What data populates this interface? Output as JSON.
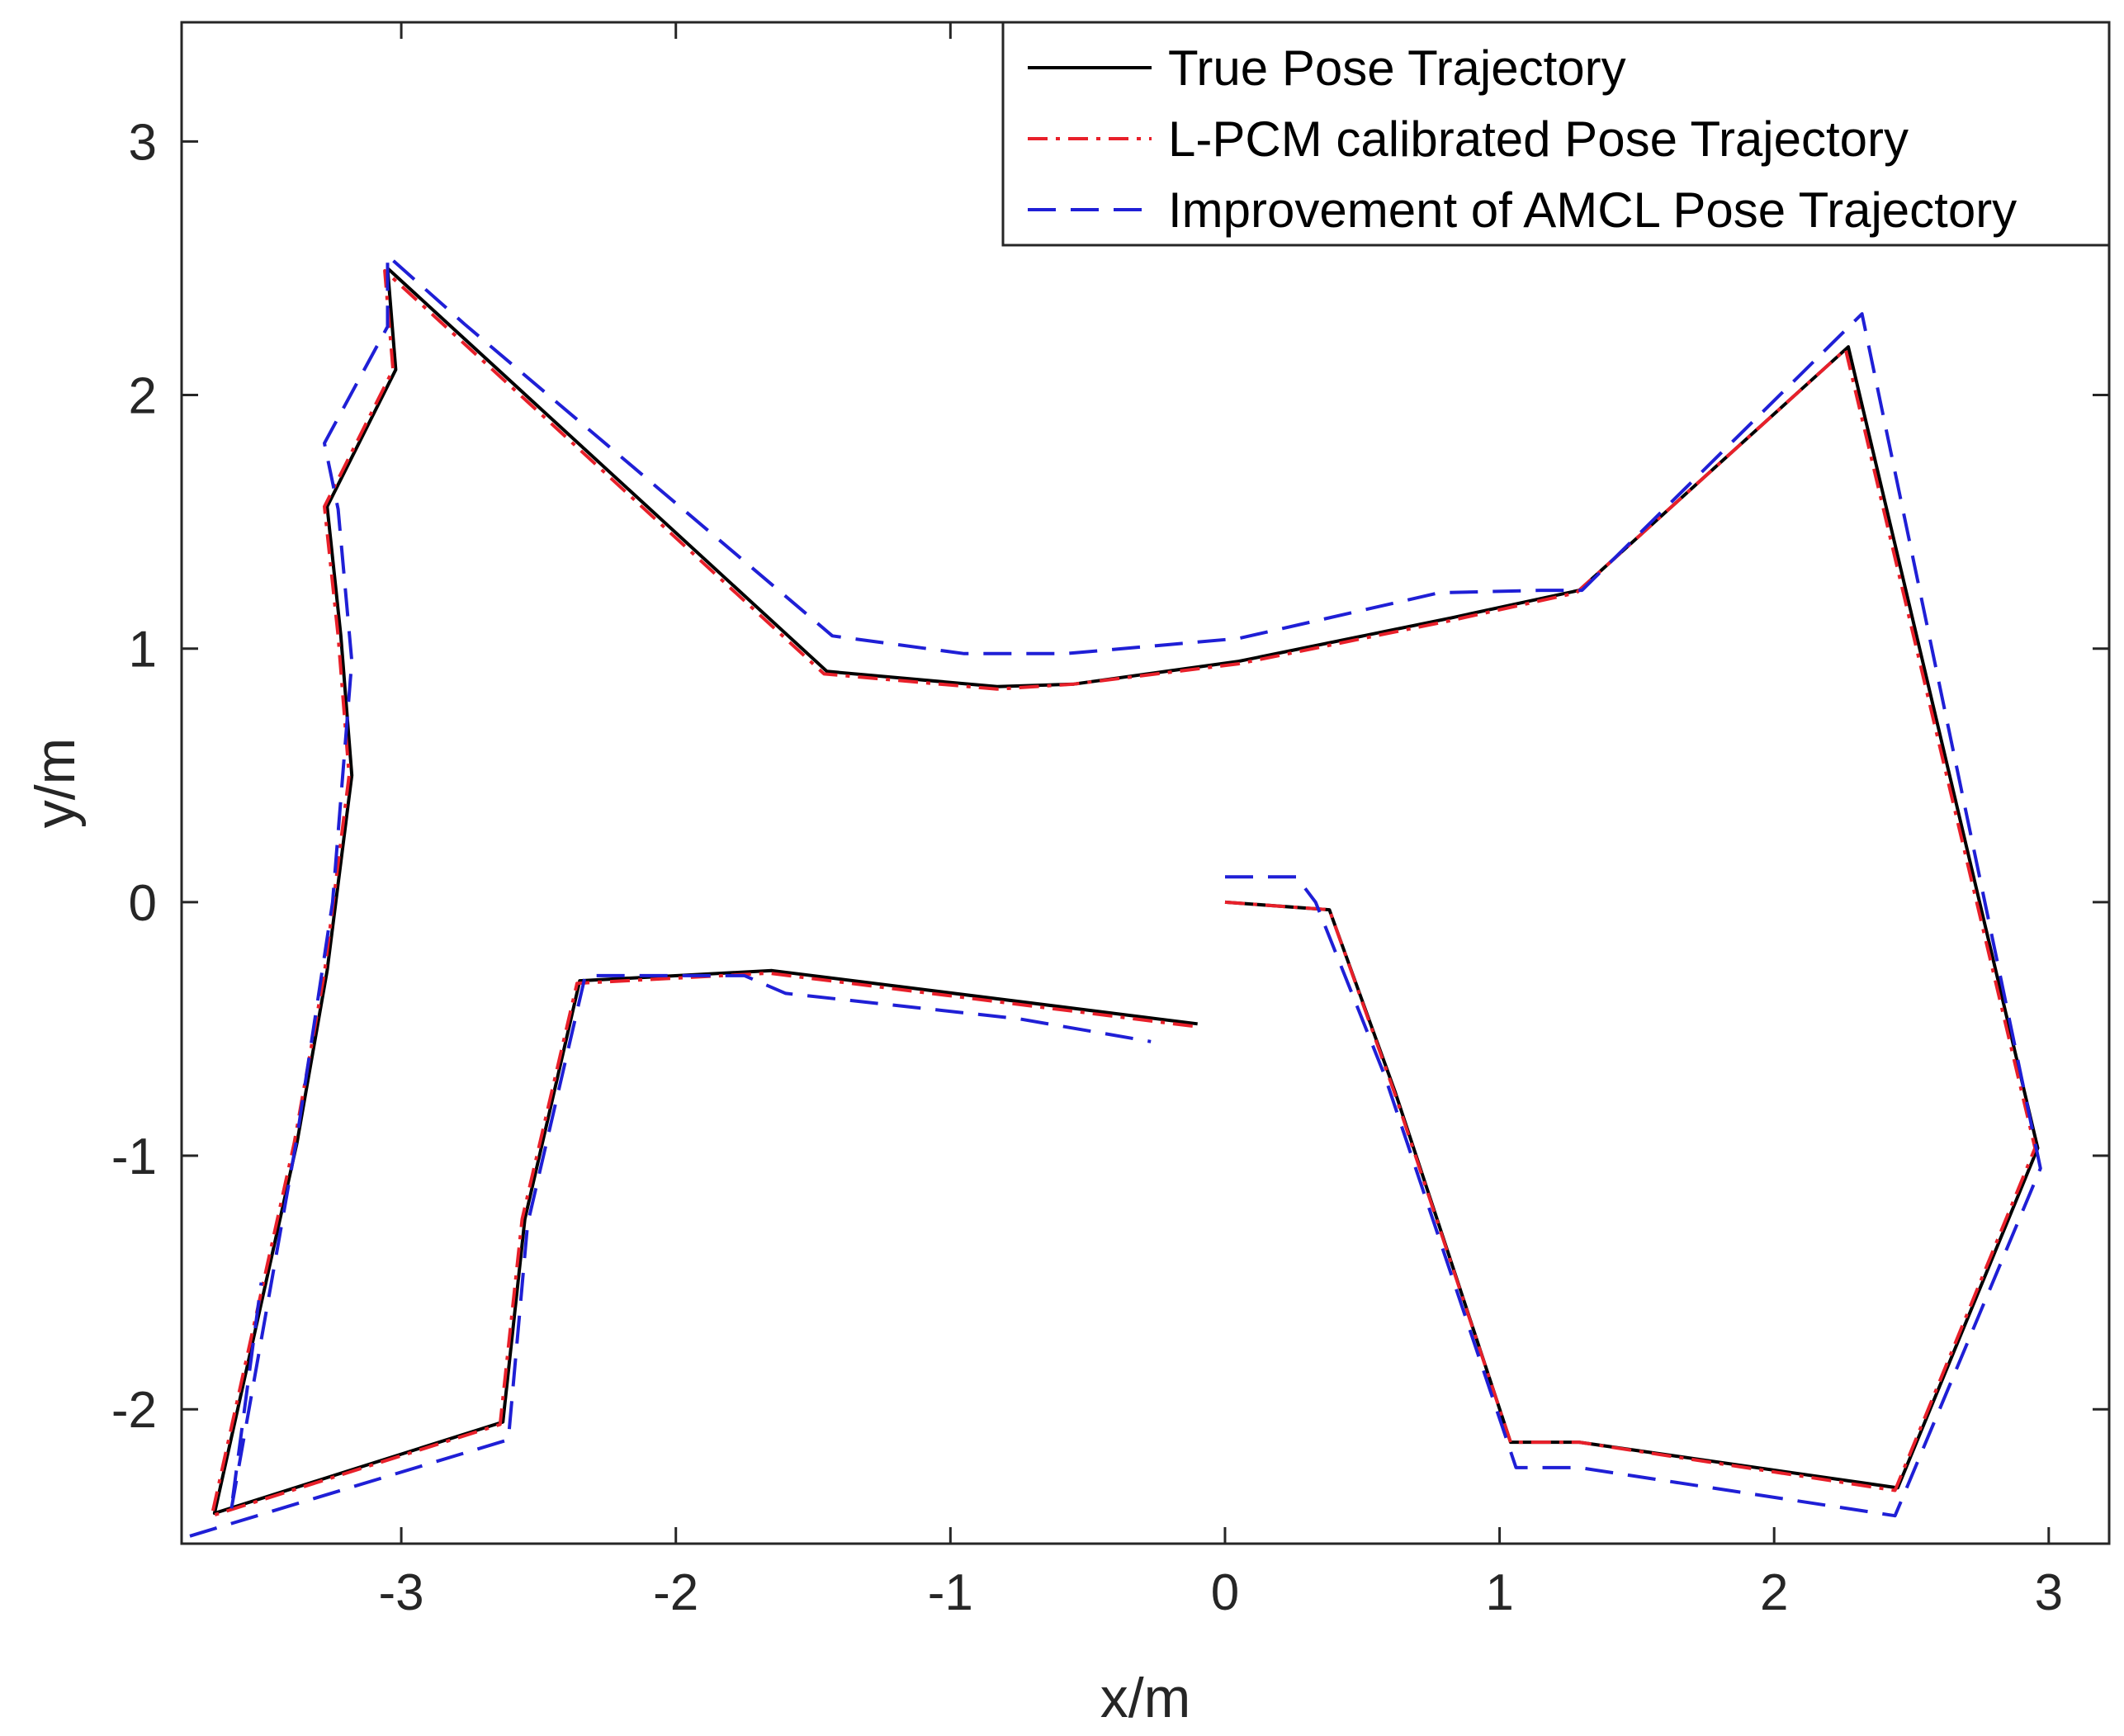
{
  "chart_data": {
    "type": "line",
    "xlabel": "x/m",
    "ylabel": "y/m",
    "xlim": [
      -3.8,
      3.22
    ],
    "ylim": [
      -2.53,
      3.47
    ],
    "xticks": [
      -3,
      -2,
      -1,
      0,
      1,
      2,
      3
    ],
    "yticks": [
      -2,
      -1,
      0,
      1,
      2,
      3
    ],
    "xtick_labels": [
      "-3",
      "-2",
      "-1",
      "0",
      "1",
      "2",
      "3"
    ],
    "ytick_labels": [
      "-2",
      "-1",
      "0",
      "1",
      "2",
      "3"
    ],
    "grid": false,
    "box": true,
    "legend_position": "top-right",
    "series": [
      {
        "name": "True Pose Trajectory",
        "color": "#000000",
        "style": "solid",
        "segments": [
          [
            [
              0,
              0
            ],
            [
              0.38,
              -0.03
            ],
            [
              0.62,
              -0.75
            ],
            [
              1.04,
              -2.13
            ],
            [
              1.29,
              -2.13
            ],
            [
              2.45,
              -2.31
            ],
            [
              2.96,
              -0.97
            ],
            [
              2.27,
              2.19
            ],
            [
              1.29,
              1.23
            ],
            [
              0.82,
              1.12
            ],
            [
              0.05,
              0.95
            ],
            [
              -0.55,
              0.86
            ],
            [
              -0.83,
              0.85
            ],
            [
              -1.45,
              0.91
            ],
            [
              -3.05,
              2.5
            ],
            [
              -3.02,
              2.1
            ],
            [
              -3.27,
              1.56
            ],
            [
              -3.22,
              1.05
            ],
            [
              -3.18,
              0.5
            ],
            [
              -3.27,
              -0.27
            ],
            [
              -3.38,
              -0.95
            ],
            [
              -3.68,
              -2.41
            ],
            [
              -2.63,
              -2.05
            ],
            [
              -2.55,
              -1.25
            ],
            [
              -2.35,
              -0.31
            ],
            [
              -1.65,
              -0.27
            ],
            [
              -0.1,
              -0.48
            ]
          ]
        ]
      },
      {
        "name": "L-PCM calibrated Pose Trajectory",
        "color": "#e8202a",
        "style": "dashdot",
        "segments": [
          [
            [
              0,
              0
            ],
            [
              0.38,
              -0.03
            ],
            [
              0.62,
              -0.76
            ],
            [
              1.04,
              -2.13
            ],
            [
              1.29,
              -2.13
            ],
            [
              2.44,
              -2.32
            ],
            [
              2.95,
              -0.97
            ],
            [
              2.26,
              2.18
            ],
            [
              1.28,
              1.22
            ],
            [
              0.82,
              1.11
            ],
            [
              0.05,
              0.94
            ],
            [
              -0.55,
              0.86
            ],
            [
              -0.83,
              0.84
            ],
            [
              -1.46,
              0.9
            ],
            [
              -3.06,
              2.49
            ],
            [
              -3.03,
              2.1
            ],
            [
              -3.28,
              1.56
            ],
            [
              -3.23,
              1.05
            ],
            [
              -3.19,
              0.5
            ],
            [
              -3.28,
              -0.28
            ],
            [
              -3.39,
              -0.95
            ],
            [
              -3.69,
              -2.42
            ],
            [
              -2.64,
              -2.06
            ],
            [
              -2.56,
              -1.25
            ],
            [
              -2.36,
              -0.32
            ],
            [
              -1.66,
              -0.28
            ],
            [
              -0.11,
              -0.49
            ]
          ]
        ]
      },
      {
        "name": "Improvement of AMCL Pose Trajectory",
        "color": "#1f1fd6",
        "style": "dashed",
        "segments": [
          [
            [
              0,
              0.1
            ],
            [
              0.26,
              0.1
            ],
            [
              0.33,
              0.0
            ],
            [
              0.58,
              -0.68
            ],
            [
              1.06,
              -2.23
            ],
            [
              1.29,
              -2.23
            ],
            [
              2.44,
              -2.42
            ],
            [
              2.97,
              -1.05
            ],
            [
              2.32,
              2.32
            ],
            [
              1.3,
              1.23
            ],
            [
              1.15,
              1.23
            ],
            [
              0.78,
              1.22
            ],
            [
              0.05,
              1.04
            ],
            [
              -0.58,
              0.98
            ],
            [
              -0.95,
              0.98
            ],
            [
              -1.43,
              1.05
            ],
            [
              -2.77,
              2.28
            ],
            [
              -3.05,
              2.55
            ],
            [
              -3.05,
              2.27
            ],
            [
              -3.28,
              1.81
            ],
            [
              -3.23,
              1.55
            ],
            [
              -3.18,
              0.95
            ],
            [
              -3.25,
              0.0
            ],
            [
              -3.38,
              -0.93
            ],
            [
              -3.62,
              -2.4
            ],
            [
              -3.51,
              -1.5
            ]
          ],
          [
            [
              -3.77,
              -2.5
            ],
            [
              -2.61,
              -2.12
            ],
            [
              -2.54,
              -1.27
            ],
            [
              -2.33,
              -0.29
            ],
            [
              -1.75,
              -0.29
            ],
            [
              -1.6,
              -0.36
            ],
            [
              -0.75,
              -0.46
            ],
            [
              -0.27,
              -0.55
            ]
          ]
        ]
      }
    ]
  }
}
